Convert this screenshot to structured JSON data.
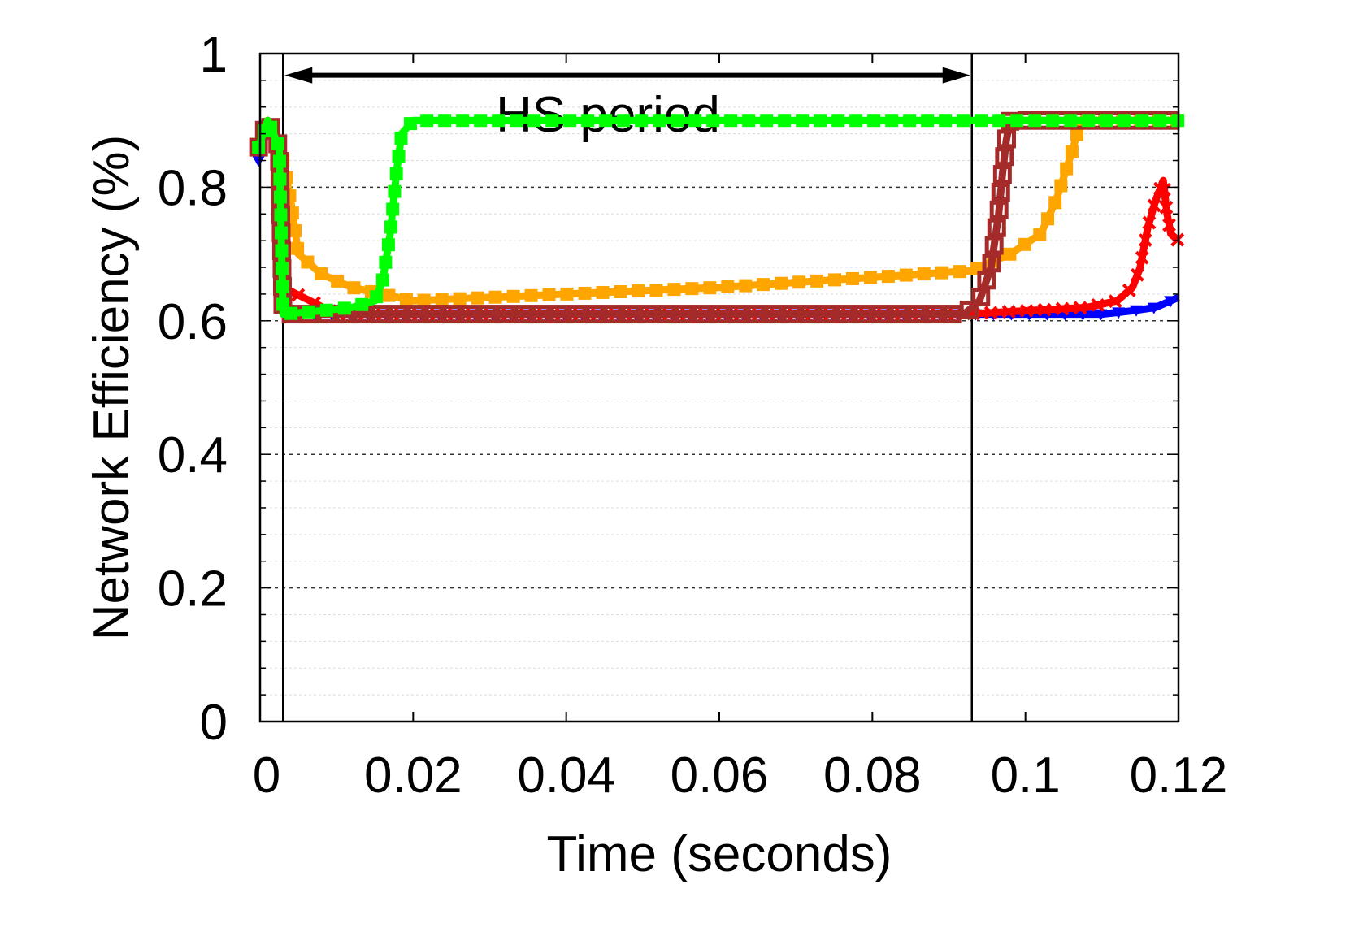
{
  "chart_data": {
    "type": "line",
    "title": "",
    "xlabel": "Time (seconds)",
    "ylabel": "Network Efficiency (%)",
    "xlim": [
      0,
      0.12
    ],
    "ylim": [
      0,
      1
    ],
    "x_ticks": [
      "0",
      "0.02",
      "0.04",
      "0.06",
      "0.08",
      "0.1",
      "0.12"
    ],
    "x_tick_values": [
      0,
      0.02,
      0.04,
      0.06,
      0.08,
      0.1,
      0.12
    ],
    "y_ticks": [
      "0",
      "0.2",
      "0.4",
      "0.6",
      "0.8",
      "1"
    ],
    "y_tick_values": [
      0,
      0.2,
      0.4,
      0.6,
      0.8,
      1
    ],
    "grid": true,
    "legend": "none",
    "annotations": [
      {
        "text": "HS period",
        "x_start": 0.003,
        "x_end": 0.093,
        "y": 0.97
      }
    ],
    "vertical_lines_x": [
      0.003,
      0.093
    ],
    "series": [
      {
        "color": "#0000ff",
        "marker": "triangle-down",
        "x": [
          -0.0002,
          0.001,
          0.0025,
          0.003,
          0.01,
          0.02,
          0.04,
          0.06,
          0.08,
          0.092,
          0.1,
          0.11,
          0.114,
          0.117,
          0.119,
          0.12
        ],
        "y": [
          0.84,
          0.9,
          0.86,
          0.61,
          0.61,
          0.61,
          0.61,
          0.61,
          0.61,
          0.61,
          0.61,
          0.61,
          0.615,
          0.62,
          0.63,
          0.635
        ]
      },
      {
        "color": "#ff0000",
        "marker": "x",
        "x": [
          -0.0002,
          0.001,
          0.0025,
          0.003,
          0.01,
          0.02,
          0.04,
          0.06,
          0.08,
          0.092,
          0.1,
          0.108,
          0.112,
          0.114,
          0.115,
          0.116,
          0.117,
          0.118,
          0.1185,
          0.119,
          0.12
        ],
        "y": [
          0.86,
          0.9,
          0.86,
          0.65,
          0.61,
          0.61,
          0.61,
          0.61,
          0.61,
          0.61,
          0.615,
          0.62,
          0.63,
          0.65,
          0.68,
          0.74,
          0.78,
          0.81,
          0.76,
          0.73,
          0.72
        ]
      },
      {
        "color": "#ffa500",
        "marker": "square",
        "x": [
          -0.0002,
          0.001,
          0.0025,
          0.004,
          0.005,
          0.008,
          0.012,
          0.02,
          0.04,
          0.06,
          0.08,
          0.093,
          0.098,
          0.102,
          0.104,
          0.106,
          0.107,
          0.108,
          0.12
        ],
        "y": [
          0.86,
          0.9,
          0.87,
          0.78,
          0.7,
          0.67,
          0.65,
          0.63,
          0.64,
          0.65,
          0.665,
          0.675,
          0.7,
          0.73,
          0.78,
          0.85,
          0.89,
          0.9,
          0.9
        ]
      },
      {
        "color": "#a52a2a",
        "marker": "square-open",
        "x": [
          -0.0002,
          0.001,
          0.0025,
          0.003,
          0.01,
          0.02,
          0.04,
          0.06,
          0.08,
          0.092,
          0.094,
          0.0955,
          0.0965,
          0.097,
          0.0975,
          0.098,
          0.1,
          0.12
        ],
        "y": [
          0.86,
          0.9,
          0.86,
          0.61,
          0.61,
          0.61,
          0.61,
          0.61,
          0.61,
          0.61,
          0.63,
          0.68,
          0.76,
          0.82,
          0.87,
          0.9,
          0.9,
          0.9
        ]
      },
      {
        "color": "#00ff00",
        "marker": "square",
        "x": [
          -0.0002,
          0.001,
          0.0025,
          0.003,
          0.008,
          0.012,
          0.015,
          0.016,
          0.017,
          0.0178,
          0.0185,
          0.02,
          0.03,
          0.06,
          0.09,
          0.12
        ],
        "y": [
          0.86,
          0.9,
          0.86,
          0.61,
          0.615,
          0.62,
          0.63,
          0.66,
          0.73,
          0.82,
          0.88,
          0.9,
          0.9,
          0.9,
          0.9,
          0.9
        ]
      }
    ]
  }
}
